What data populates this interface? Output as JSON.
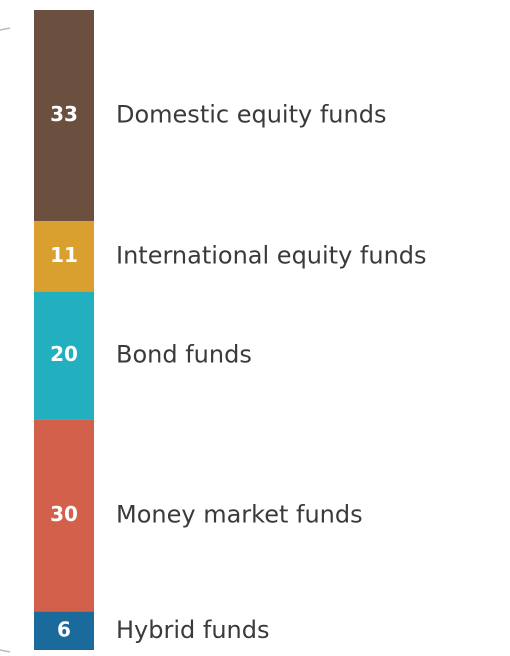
{
  "chart_data": {
    "type": "bar",
    "stacked": true,
    "series": [
      {
        "name": "Domestic equity funds",
        "color": "#6b503f",
        "values": [
          33
        ]
      },
      {
        "name": "International equity funds",
        "color": "#d9a02f",
        "values": [
          11
        ]
      },
      {
        "name": "Bond funds",
        "color": "#22b0c0",
        "values": [
          20
        ]
      },
      {
        "name": "Money market funds",
        "color": "#d2604a",
        "values": [
          30
        ]
      },
      {
        "name": "Hybrid funds",
        "color": "#1a6a9c",
        "values": [
          6
        ]
      }
    ]
  }
}
